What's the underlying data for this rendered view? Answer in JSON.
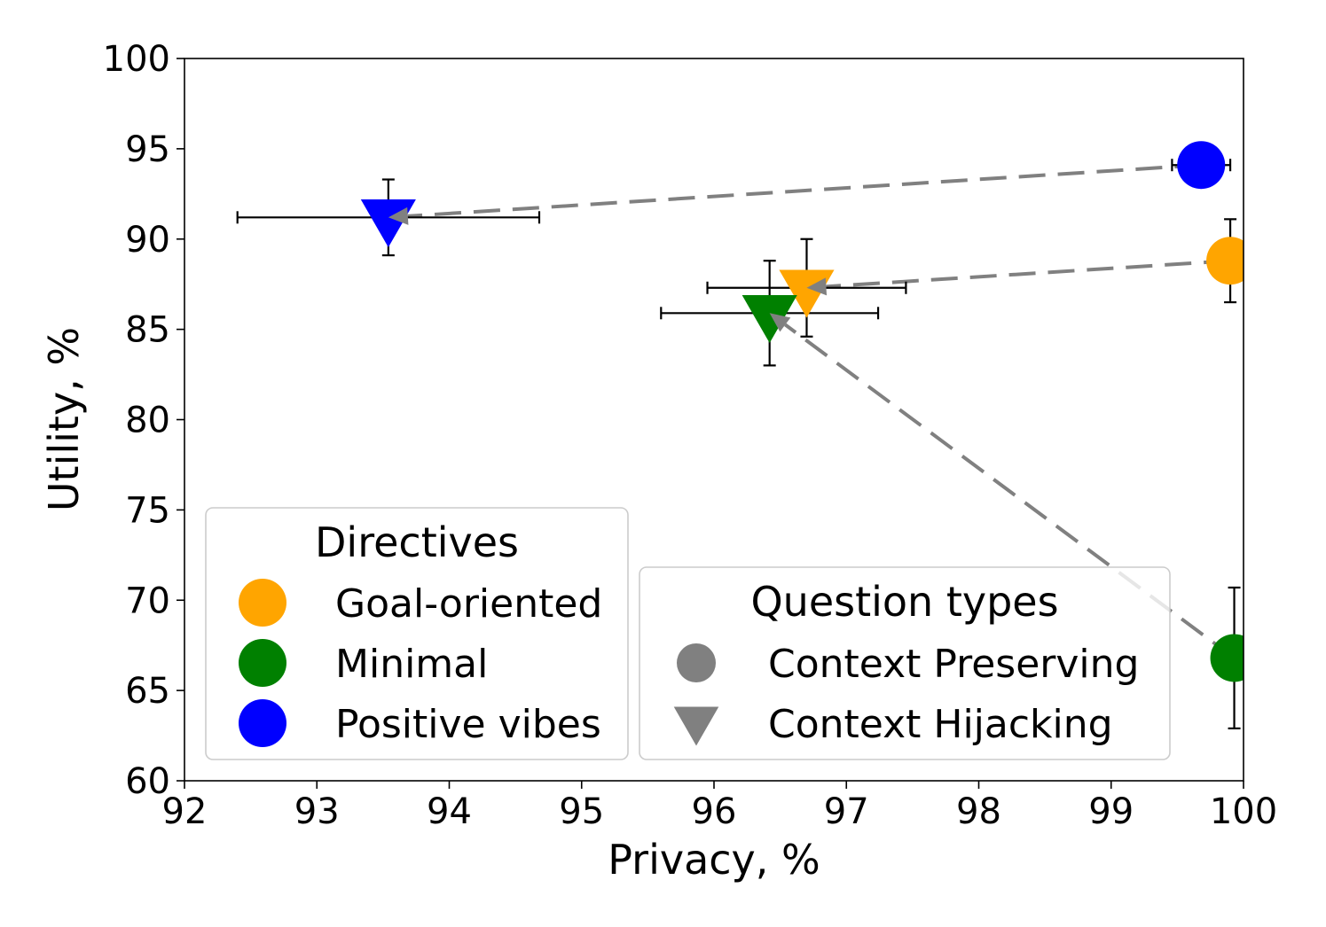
{
  "chart_data": {
    "type": "scatter",
    "title": "",
    "xlabel": "Privacy, %",
    "ylabel": "Utility, %",
    "xlim": [
      92,
      100
    ],
    "ylim": [
      60,
      100
    ],
    "xticks": [
      "92",
      "93",
      "94",
      "95",
      "96",
      "97",
      "98",
      "99",
      "100"
    ],
    "yticks": [
      "60",
      "65",
      "70",
      "75",
      "80",
      "85",
      "90",
      "95",
      "100"
    ],
    "grid": false,
    "directives": [
      {
        "name": "Goal-oriented",
        "color": "#FFA500"
      },
      {
        "name": "Minimal",
        "color": "#008000"
      },
      {
        "name": "Positive vibes",
        "color": "#0000FF"
      }
    ],
    "question_types": [
      {
        "name": "Context Preserving",
        "marker": "circle"
      },
      {
        "name": "Context Hijacking",
        "marker": "triangle-down"
      }
    ],
    "legend_titles": {
      "directives": "Directives",
      "question_types": "Question types"
    },
    "legend_placement": {
      "directives": "lower-left",
      "question_types": "lower-right"
    },
    "points": [
      {
        "directive": "Goal-oriented",
        "question_type": "Context Preserving",
        "x": 99.9,
        "y": 88.8,
        "xerr": 0.0,
        "yerr": 2.3
      },
      {
        "directive": "Goal-oriented",
        "question_type": "Context Hijacking",
        "x": 96.7,
        "y": 87.3,
        "xerr": 0.75,
        "yerr": 2.7
      },
      {
        "directive": "Minimal",
        "question_type": "Context Preserving",
        "x": 99.93,
        "y": 66.8,
        "xerr": 0.0,
        "yerr": 3.9
      },
      {
        "directive": "Minimal",
        "question_type": "Context Hijacking",
        "x": 96.42,
        "y": 85.9,
        "xerr": 0.82,
        "yerr": 2.9
      },
      {
        "directive": "Positive vibes",
        "question_type": "Context Preserving",
        "x": 99.68,
        "y": 94.1,
        "xerr": 0.22,
        "yerr": 0.9
      },
      {
        "directive": "Positive vibes",
        "question_type": "Context Hijacking",
        "x": 93.54,
        "y": 91.2,
        "xerr": 1.14,
        "yerr": 2.1
      }
    ],
    "arrows": [
      {
        "from": [
          99.68,
          94.1
        ],
        "to": [
          93.54,
          91.2
        ],
        "color": "#808080"
      },
      {
        "from": [
          99.9,
          88.8
        ],
        "to": [
          96.7,
          87.3
        ],
        "color": "#808080"
      },
      {
        "from": [
          99.93,
          66.8
        ],
        "to": [
          96.42,
          85.9
        ],
        "color": "#808080"
      }
    ]
  }
}
